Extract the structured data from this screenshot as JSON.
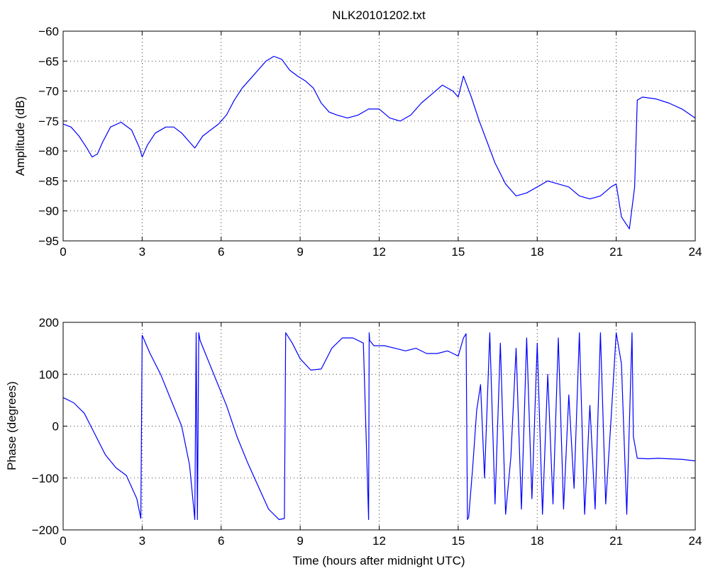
{
  "figure": {
    "title": "NLK20101202.txt",
    "line_color": "#0000ff"
  },
  "chart_data": [
    {
      "type": "line",
      "title": "NLK20101202.txt",
      "xlabel": "",
      "ylabel": "Amplitude (dB)",
      "xlim": [
        0,
        24
      ],
      "ylim": [
        -95,
        -60
      ],
      "xticks": [
        0,
        3,
        6,
        9,
        12,
        15,
        18,
        21,
        24
      ],
      "yticks": [
        -95,
        -90,
        -85,
        -80,
        -75,
        -70,
        -65,
        -60
      ],
      "grid": true,
      "series": [
        {
          "color": "#0000ff",
          "x": [
            0,
            0.3,
            0.6,
            0.9,
            1.1,
            1.3,
            1.5,
            1.8,
            2.2,
            2.6,
            2.9,
            3.0,
            3.2,
            3.5,
            3.9,
            4.2,
            4.5,
            4.8,
            5.0,
            5.3,
            5.6,
            5.9,
            6.2,
            6.5,
            6.8,
            7.1,
            7.4,
            7.7,
            8.0,
            8.3,
            8.6,
            8.9,
            9.2,
            9.5,
            9.8,
            10.1,
            10.4,
            10.8,
            11.2,
            11.6,
            12.0,
            12.4,
            12.8,
            13.2,
            13.6,
            14.0,
            14.4,
            14.8,
            15.0,
            15.2,
            15.5,
            15.8,
            16.1,
            16.4,
            16.8,
            17.2,
            17.6,
            18.0,
            18.4,
            18.8,
            19.2,
            19.6,
            20.0,
            20.4,
            20.8,
            21.0,
            21.2,
            21.5,
            21.7,
            21.8,
            22.0,
            22.5,
            23.0,
            23.5,
            24.0
          ],
          "y": [
            -75.5,
            -76,
            -77.5,
            -79.5,
            -81,
            -80.5,
            -78.5,
            -76,
            -75.2,
            -76.5,
            -79.5,
            -81,
            -79,
            -77,
            -76,
            -76,
            -77,
            -78.5,
            -79.5,
            -77.5,
            -76.5,
            -75.5,
            -74,
            -71.5,
            -69.5,
            -68,
            -66.5,
            -65,
            -64.2,
            -64.7,
            -66.5,
            -67.5,
            -68.3,
            -69.5,
            -72,
            -73.5,
            -74,
            -74.5,
            -74,
            -73,
            -73,
            -74.5,
            -75,
            -74,
            -72,
            -70.5,
            -69,
            -70,
            -71,
            -67.5,
            -71,
            -75,
            -78.5,
            -82,
            -85.5,
            -87.5,
            -87,
            -86,
            -85,
            -85.5,
            -86,
            -87.5,
            -88,
            -87.5,
            -86,
            -85.5,
            -91,
            -93,
            -86,
            -71.5,
            -71,
            -71.3,
            -72,
            -73,
            -74.5
          ]
        }
      ]
    },
    {
      "type": "line",
      "title": "",
      "xlabel": "Time (hours after midnight UTC)",
      "ylabel": "Phase (degrees)",
      "xlim": [
        0,
        24
      ],
      "ylim": [
        -200,
        200
      ],
      "xticks": [
        0,
        3,
        6,
        9,
        12,
        15,
        18,
        21,
        24
      ],
      "yticks": [
        -200,
        -100,
        0,
        100,
        200
      ],
      "grid": true,
      "series": [
        {
          "color": "#0000ff",
          "x": [
            0,
            0.4,
            0.8,
            1.2,
            1.6,
            2.0,
            2.4,
            2.8,
            2.95,
            3.0,
            3.3,
            3.7,
            4.1,
            4.5,
            4.8,
            5.0,
            5.05,
            5.1,
            5.15,
            5.2,
            5.4,
            5.8,
            6.2,
            6.6,
            7.0,
            7.4,
            7.8,
            8.2,
            8.4,
            8.45,
            8.7,
            9.0,
            9.4,
            9.8,
            10.2,
            10.6,
            11.0,
            11.4,
            11.6,
            11.62,
            11.64,
            11.8,
            12.2,
            12.6,
            13.0,
            13.4,
            13.8,
            14.2,
            14.6,
            15.0,
            15.2,
            15.3,
            15.35,
            15.4,
            15.55,
            15.7,
            15.85,
            16.0,
            16.2,
            16.4,
            16.6,
            16.8,
            17.0,
            17.2,
            17.4,
            17.6,
            17.8,
            18.0,
            18.2,
            18.4,
            18.6,
            18.8,
            19.0,
            19.2,
            19.4,
            19.6,
            19.8,
            20.0,
            20.2,
            20.4,
            20.6,
            20.8,
            21.0,
            21.2,
            21.4,
            21.6,
            21.65,
            21.8,
            22.2,
            22.6,
            23.0,
            23.5,
            24.0
          ],
          "y": [
            55,
            45,
            25,
            -15,
            -55,
            -80,
            -95,
            -140,
            -178,
            175,
            140,
            100,
            50,
            0,
            -75,
            -180,
            180,
            -180,
            180,
            165,
            140,
            90,
            40,
            -20,
            -70,
            -115,
            -160,
            -180,
            -178,
            180,
            160,
            130,
            108,
            110,
            150,
            170,
            170,
            160,
            -180,
            180,
            165,
            155,
            155,
            150,
            145,
            150,
            140,
            140,
            145,
            135,
            170,
            178,
            -180,
            -175,
            -80,
            30,
            80,
            -100,
            180,
            -150,
            160,
            -170,
            -60,
            150,
            -160,
            170,
            -140,
            160,
            -170,
            100,
            -150,
            170,
            -160,
            60,
            -120,
            180,
            -170,
            40,
            -160,
            180,
            -150,
            10,
            180,
            120,
            -170,
            180,
            -20,
            -62,
            -63,
            -62,
            -63,
            -64,
            -67
          ]
        }
      ]
    }
  ]
}
